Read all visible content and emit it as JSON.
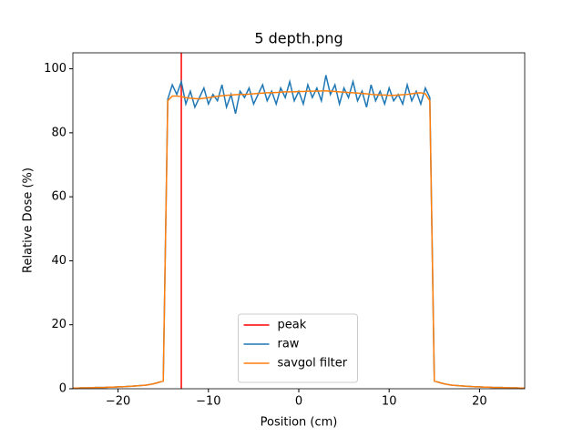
{
  "chart_data": {
    "type": "line",
    "title": "5 depth.png",
    "x_label": "Position (cm)",
    "y_label": "Relative Dose (%)",
    "xlim": [
      -25,
      25
    ],
    "ylim": [
      0,
      105
    ],
    "xticks": [
      {
        "value": -20,
        "label": "−20"
      },
      {
        "value": -10,
        "label": "−10"
      },
      0,
      10,
      20
    ],
    "yticks": [
      0,
      20,
      40,
      60,
      80,
      100
    ],
    "grid": false,
    "legend_position": "lower center",
    "vlines": [
      {
        "name": "peak",
        "x": -13,
        "color": "#ff0000"
      }
    ],
    "x": [
      -25,
      -24.5,
      -24,
      -23.5,
      -23,
      -22.5,
      -22,
      -21.5,
      -21,
      -20.5,
      -20,
      -19.5,
      -19,
      -18.5,
      -18,
      -17.5,
      -17,
      -16.5,
      -16,
      -15.5,
      -15,
      -14.5,
      -14,
      -13.5,
      -13,
      -12.5,
      -12,
      -11.5,
      -11,
      -10.5,
      -10,
      -9.5,
      -9,
      -8.5,
      -8,
      -7.5,
      -7,
      -6.5,
      -6,
      -5.5,
      -5,
      -4.5,
      -4,
      -3.5,
      -3,
      -2.5,
      -2,
      -1.5,
      -1,
      -0.5,
      0,
      0.5,
      1,
      1.5,
      2,
      2.5,
      3,
      3.5,
      4,
      4.5,
      5,
      5.5,
      6,
      6.5,
      7,
      7.5,
      8,
      8.5,
      9,
      9.5,
      10,
      10.5,
      11,
      11.5,
      12,
      12.5,
      13,
      13.5,
      14,
      14.5,
      15,
      15.5,
      16,
      16.5,
      17,
      17.5,
      18,
      18.5,
      19,
      19.5,
      20,
      20.5,
      21,
      21.5,
      22,
      22.5,
      23,
      23.5,
      24,
      24.5,
      25
    ],
    "series": [
      {
        "name": "raw",
        "color": "#1f77b4",
        "values": [
          0.2,
          0.2,
          0.3,
          0.3,
          0.3,
          0.4,
          0.4,
          0.4,
          0.5,
          0.5,
          0.6,
          0.6,
          0.7,
          0.8,
          0.9,
          1.0,
          1.1,
          1.3,
          1.6,
          2.0,
          2.4,
          90.5,
          95,
          92,
          96,
          89,
          93,
          88,
          91,
          94,
          89,
          92,
          90,
          95,
          88,
          92,
          86,
          93,
          91,
          94,
          89,
          92,
          95,
          90,
          93,
          89,
          94,
          91,
          96,
          90,
          93,
          89,
          95,
          91,
          94,
          90,
          98,
          92,
          95,
          89,
          94,
          91,
          96,
          90,
          93,
          88,
          95,
          90,
          93,
          89,
          94,
          90,
          92,
          89,
          95,
          90,
          93,
          89,
          94,
          91,
          2.4,
          2.0,
          1.6,
          1.3,
          1.1,
          1.0,
          0.9,
          0.8,
          0.7,
          0.6,
          0.6,
          0.5,
          0.5,
          0.4,
          0.4,
          0.4,
          0.3,
          0.3,
          0.3,
          0.2,
          0.2
        ]
      },
      {
        "name": "savgol filter",
        "color": "#ff7f0e",
        "values": [
          0.2,
          0.2,
          0.3,
          0.3,
          0.3,
          0.4,
          0.4,
          0.4,
          0.5,
          0.5,
          0.6,
          0.6,
          0.7,
          0.8,
          0.9,
          1.0,
          1.1,
          1.3,
          1.6,
          2.0,
          2.4,
          90,
          91.5,
          91.5,
          91.3,
          91,
          90.8,
          90.7,
          90.6,
          90.8,
          91,
          91.2,
          91.4,
          91.6,
          91.7,
          91.8,
          91.9,
          92,
          92,
          92.1,
          92.2,
          92.3,
          92.4,
          92.5,
          92.5,
          92.6,
          92.7,
          92.8,
          92.8,
          92.8,
          92.9,
          92.9,
          93,
          93,
          93,
          93.1,
          93.1,
          93,
          92.9,
          92.8,
          92.7,
          92.6,
          92.5,
          92.4,
          92.3,
          92.2,
          92,
          91.9,
          91.8,
          91.8,
          91.7,
          91.7,
          91.8,
          91.9,
          92,
          92.2,
          92.4,
          92.5,
          92.2,
          90,
          2.4,
          2.0,
          1.6,
          1.3,
          1.1,
          1.0,
          0.9,
          0.8,
          0.7,
          0.6,
          0.6,
          0.5,
          0.5,
          0.4,
          0.4,
          0.4,
          0.3,
          0.3,
          0.3,
          0.2,
          0.2
        ]
      }
    ]
  }
}
